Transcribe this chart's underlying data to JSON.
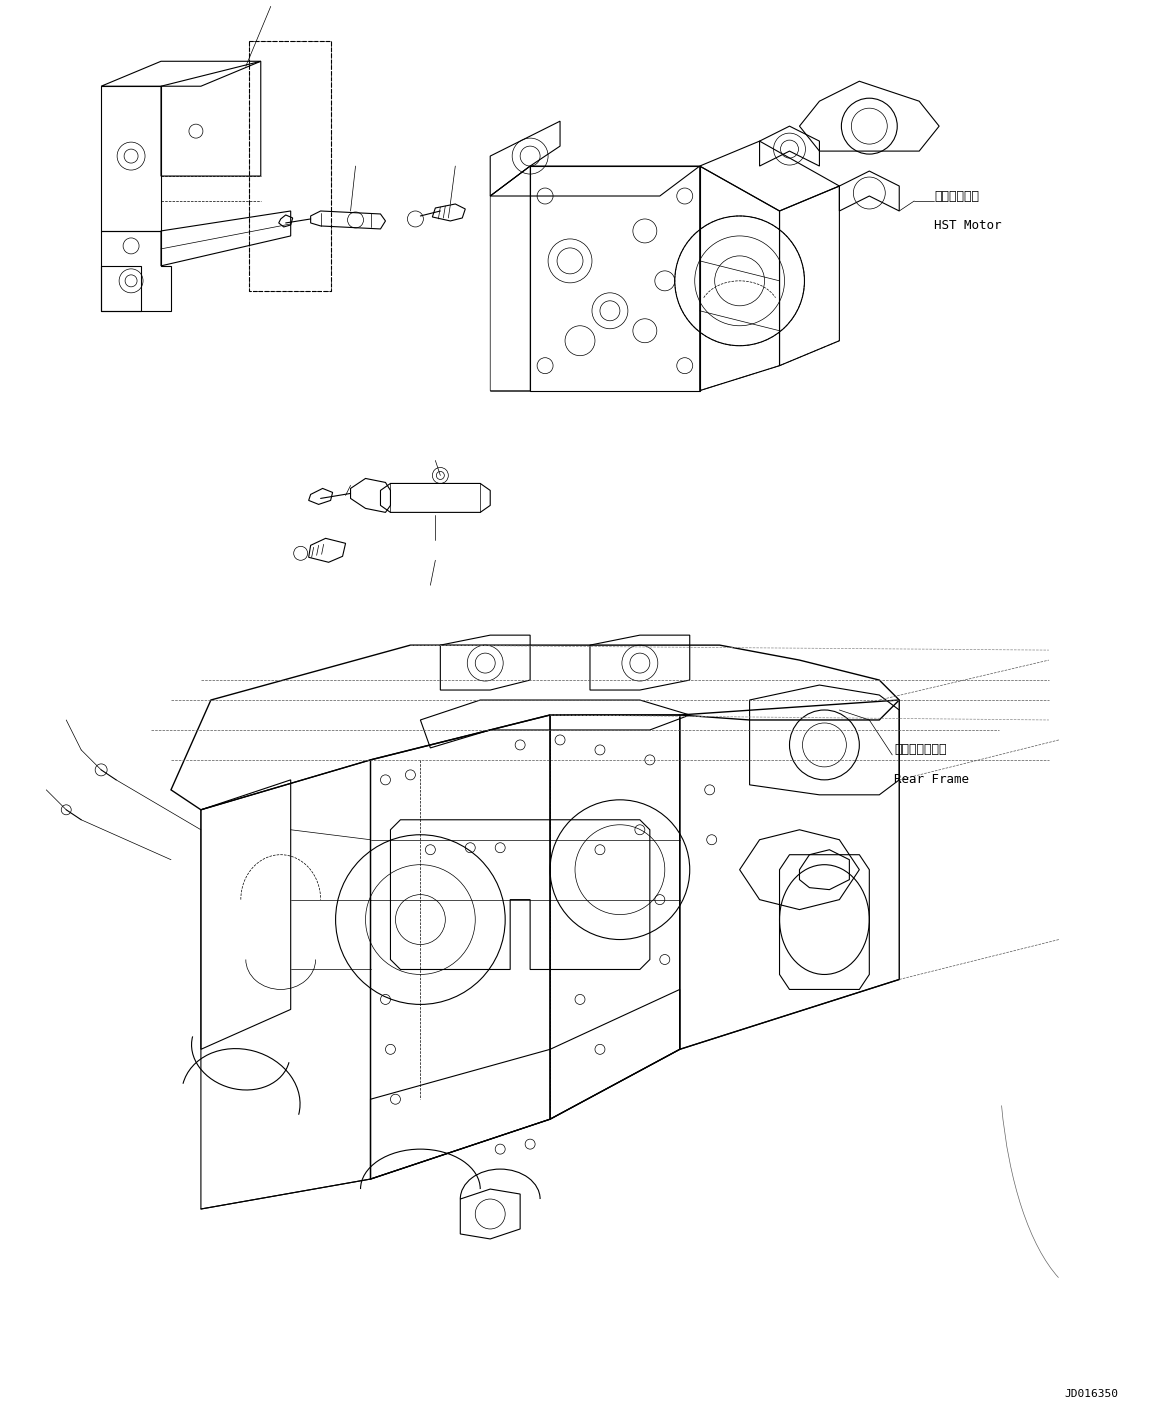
{
  "bg_color": "#ffffff",
  "fig_width": 11.63,
  "fig_height": 14.14,
  "dpi": 100,
  "label_hst_jp": "ＨＳＴモータ",
  "label_hst_en": "HST Motor",
  "label_rear_jp": "リヤーフレーム",
  "label_rear_en": "Rear Frame",
  "part_number": "JD016350",
  "line_color": "#000000",
  "font_size_label": 9,
  "font_size_part": 8,
  "lw_thin": 0.5,
  "lw_med": 0.8,
  "lw_thick": 1.0
}
